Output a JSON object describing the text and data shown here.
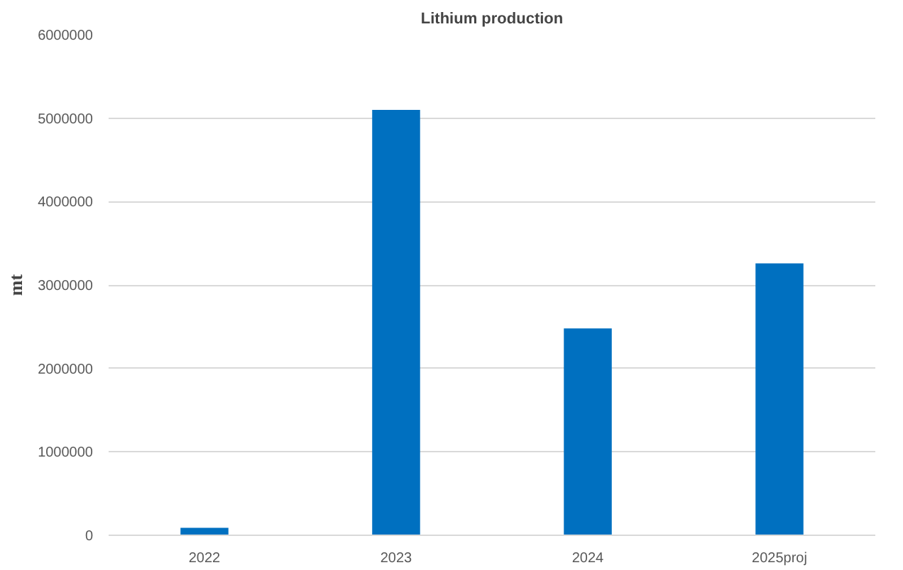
{
  "chart_data": {
    "type": "bar",
    "title": "Lithium production",
    "ylabel": "mt",
    "categories": [
      "2022",
      "2023",
      "2024",
      "2025proj"
    ],
    "values": [
      90000,
      5100000,
      2480000,
      3260000
    ],
    "color": "#0070c0",
    "ylim": [
      0,
      6000000
    ],
    "yticks": [
      0,
      1000000,
      2000000,
      3000000,
      4000000,
      5000000,
      6000000
    ],
    "grid": "y"
  }
}
